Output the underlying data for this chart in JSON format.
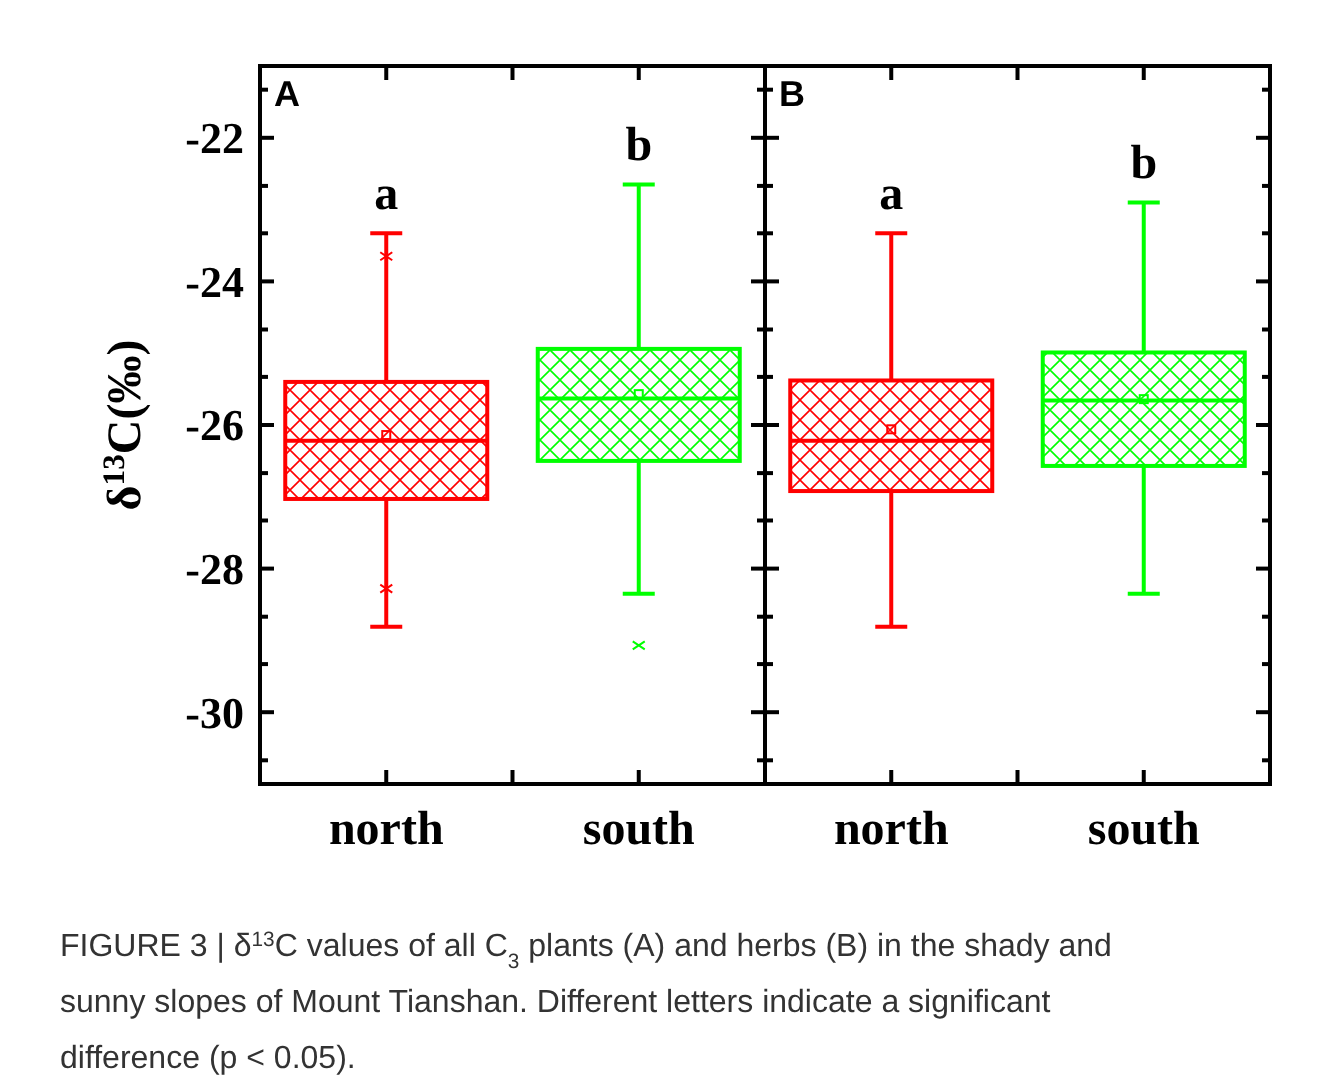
{
  "chart_data": [
    {
      "type": "box",
      "title": "A",
      "ylabel": "δ$^{13}$C(‰)",
      "categories": [
        "north",
        "south"
      ],
      "colors": [
        "#ff0000",
        "#00ff00"
      ],
      "boxes": [
        {
          "low": -28.81,
          "q1": -27.03,
          "median": -26.22,
          "q3": -25.4,
          "high": -23.33,
          "mean": -26.14,
          "outliers": [
            -23.65,
            -28.28
          ]
        },
        {
          "low": -28.35,
          "q1": -26.5,
          "median": -25.63,
          "q3": -24.94,
          "high": -22.65,
          "mean": -25.57,
          "outliers": [
            -29.07
          ]
        }
      ],
      "ylim": [
        -31,
        -21
      ],
      "yticks": [
        -22,
        {
          "value": -22.67,
          "label": null
        },
        {
          "value": -23.33,
          "label": null
        },
        -24,
        {
          "value": -24.67,
          "label": null
        },
        {
          "value": -25.33,
          "label": null
        },
        -26,
        {
          "value": -26.67,
          "label": null
        },
        {
          "value": -27.33,
          "label": null
        },
        -28,
        {
          "value": -28.67,
          "label": null
        },
        {
          "value": -29.33,
          "label": null
        },
        -30,
        {
          "value": -30.67,
          "label": null
        },
        {
          "value": -21.33,
          "label": null
        }
      ],
      "annotations": [
        "a",
        "b",
        "FIGURE 3 | δ$^{13}$C values of all C$_{3}$ plants (A) and herbs (B) in the shady and sunny slopes of Mount Tianshan. Different letters indicate a significant difference (p < 0.05)."
      ]
    },
    {
      "type": "box",
      "title": "B",
      "categories": [
        "north",
        "south"
      ],
      "colors": [
        "#ff0000",
        "#00ff00"
      ],
      "tick_labels": "x",
      "boxes": [
        {
          "low": -28.81,
          "q1": -26.92,
          "median": -26.22,
          "q3": -25.38,
          "high": -23.33,
          "mean": -26.06
        },
        {
          "low": -28.35,
          "q1": -26.57,
          "median": -25.66,
          "q3": -24.99,
          "high": -22.9,
          "mean": -25.64
        }
      ],
      "ylim": [
        -31,
        -21
      ],
      "yticks": [
        -22,
        {
          "value": -22.67,
          "label": null
        },
        {
          "value": -23.33,
          "label": null
        },
        -24,
        {
          "value": -24.67,
          "label": null
        },
        {
          "value": -25.33,
          "label": null
        },
        -26,
        {
          "value": -26.67,
          "label": null
        },
        {
          "value": -27.33,
          "label": null
        },
        -28,
        {
          "value": -28.67,
          "label": null
        },
        {
          "value": -29.33,
          "label": null
        },
        -30,
        {
          "value": -30.67,
          "label": null
        },
        {
          "value": -21.33,
          "label": null
        }
      ],
      "annotations": [
        "a",
        "b"
      ]
    }
  ]
}
